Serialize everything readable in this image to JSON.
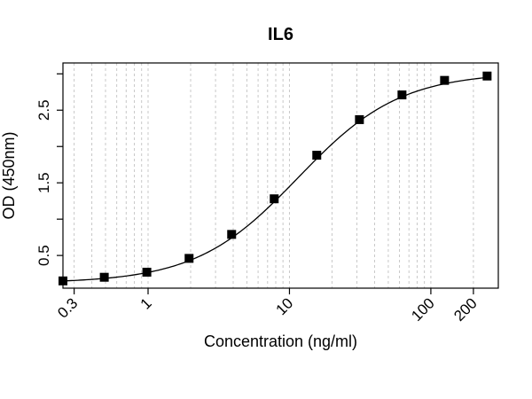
{
  "chart_data": {
    "type": "scatter",
    "title": "IL6",
    "xlabel": "Concentration (ng/ml)",
    "ylabel": "OD (450nm)",
    "x_scale": "log",
    "xlim": [
      0.25,
      300
    ],
    "ylim": [
      0.05,
      3.15
    ],
    "x_ticks": [
      0.3,
      1,
      10,
      100,
      200
    ],
    "x_tick_labels": [
      "0.3",
      "1",
      "10",
      "100",
      "200"
    ],
    "y_ticks": [
      0.5,
      1.5,
      2.5
    ],
    "y_tick_labels": [
      "0.5",
      "1.5",
      "2.5"
    ],
    "x_minor_grid": [
      0.3,
      0.4,
      0.5,
      0.6,
      0.7,
      0.8,
      0.9,
      1,
      2,
      3,
      4,
      5,
      6,
      7,
      8,
      9,
      10,
      20,
      30,
      40,
      50,
      60,
      70,
      80,
      90,
      100,
      200,
      300
    ],
    "grid": "x-dotted",
    "series": [
      {
        "x": [
          0.25,
          0.49,
          0.98,
          1.95,
          3.9,
          7.8,
          15.6,
          31.25,
          62.5,
          125,
          250
        ],
        "y": [
          0.15,
          0.2,
          0.27,
          0.46,
          0.79,
          1.28,
          1.88,
          2.37,
          2.71,
          2.91,
          2.97
        ]
      }
    ],
    "fit_curve": "4-parameter logistic"
  }
}
